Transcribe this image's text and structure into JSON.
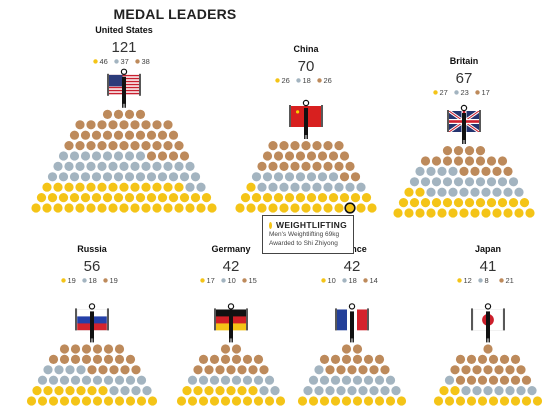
{
  "title": "MEDAL LEADERS",
  "colors": {
    "gold": "#f4c417",
    "silver": "#a3b4c0",
    "bronze": "#bd8a5b"
  },
  "chart_data": {
    "type": "pictograph",
    "description_units": "medals",
    "countries": [
      {
        "name": "United States",
        "total": 121,
        "gold": 46,
        "silver": 37,
        "bronze": 38,
        "flag": "us-flag-icon"
      },
      {
        "name": "China",
        "total": 70,
        "gold": 26,
        "silver": 18,
        "bronze": 26,
        "flag": "china-flag-icon"
      },
      {
        "name": "Britain",
        "total": 67,
        "gold": 27,
        "silver": 23,
        "bronze": 17,
        "flag": "britain-flag-icon"
      },
      {
        "name": "Russia",
        "total": 56,
        "gold": 19,
        "silver": 18,
        "bronze": 19,
        "flag": "russia-flag-icon"
      },
      {
        "name": "Germany",
        "total": 42,
        "gold": 17,
        "silver": 10,
        "bronze": 15,
        "flag": "germany-flag-icon"
      },
      {
        "name": "France",
        "total": 42,
        "gold": 10,
        "silver": 18,
        "bronze": 14,
        "flag": "france-flag-icon"
      },
      {
        "name": "Japan",
        "total": 41,
        "gold": 12,
        "silver": 8,
        "bronze": 21,
        "flag": "japan-flag-icon"
      }
    ]
  },
  "tooltip": {
    "country": "China",
    "medal": "gold",
    "title": "WEIGHTLIFTING",
    "line1": "Men's Weightlifting 69kg",
    "line2": "Awarded to Shi Zhiyong"
  }
}
